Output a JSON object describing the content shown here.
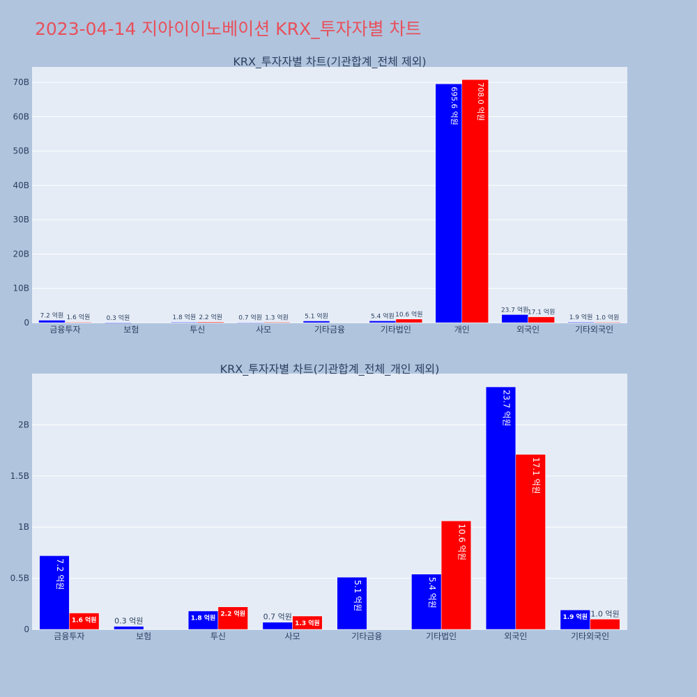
{
  "page_title": "2023-04-14 지아이이노베이션 KRX_투자자별 차트",
  "colors": {
    "buy": "#0000ff",
    "sell": "#ff0000",
    "plot_bg": "#e5ecf6",
    "page_bg": "#b0c4de",
    "title": "#e8505b"
  },
  "chart_data": [
    {
      "type": "bar",
      "title": "KRX_투자자별 차트(기관합계_전체 제외)",
      "categories": [
        "금융투자",
        "보험",
        "투신",
        "사모",
        "기타금융",
        "기타법인",
        "개인",
        "외국인",
        "기타외국인"
      ],
      "series": [
        {
          "values": [
            0.72,
            0.03,
            0.18,
            0.07,
            0.51,
            0.54,
            69.56,
            2.37,
            0.19
          ],
          "labels": [
            "7.2 억원",
            "0.3 억원",
            "1.8 억원",
            "0.7 억원",
            "5.1 억원",
            "5.4 억원",
            "695.6 억원",
            "23.7 억원",
            "1.9 억원"
          ]
        },
        {
          "values": [
            0.16,
            0,
            0.22,
            0.13,
            0,
            1.06,
            70.8,
            1.71,
            0.1
          ],
          "labels": [
            "1.6 억원",
            "",
            "2.2 억원",
            "1.3 억원",
            "",
            "10.6 억원",
            "708.0 억원",
            "17.1 억원",
            "1.0 억원"
          ]
        }
      ],
      "ylim": [
        0,
        74.5
      ],
      "yticks": [
        0,
        10,
        20,
        30,
        40,
        50,
        60,
        70
      ],
      "ytick_labels": [
        "0",
        "10B",
        "20B",
        "30B",
        "40B",
        "50B",
        "60B",
        "70B"
      ],
      "grid": true,
      "legend": "none"
    },
    {
      "type": "bar",
      "title": "KRX_투자자별 차트(기관합계_전체_개인 제외)",
      "categories": [
        "금융투자",
        "보험",
        "투신",
        "사모",
        "기타금융",
        "기타법인",
        "외국인",
        "기타외국인"
      ],
      "series": [
        {
          "values": [
            0.72,
            0.03,
            0.18,
            0.07,
            0.51,
            0.54,
            2.37,
            0.19
          ],
          "labels": [
            "7.2 억원",
            "0.3 억원",
            "1.8 억원",
            "0.7 억원",
            "5.1 억원",
            "5.4 억원",
            "23.7 억원",
            "1.9 억원"
          ]
        },
        {
          "values": [
            0.16,
            0,
            0.22,
            0.13,
            0,
            1.06,
            1.71,
            0.1
          ],
          "labels": [
            "1.6 억원",
            "",
            "2.2 억원",
            "1.3 억원",
            "",
            "10.6 억원",
            "17.1 억원",
            "1.0 억원"
          ]
        }
      ],
      "ylim": [
        0,
        2.5
      ],
      "yticks": [
        0,
        0.5,
        1,
        1.5,
        2
      ],
      "ytick_labels": [
        "0",
        "0.5B",
        "1B",
        "1.5B",
        "2B"
      ],
      "grid": true,
      "legend": "none"
    }
  ]
}
